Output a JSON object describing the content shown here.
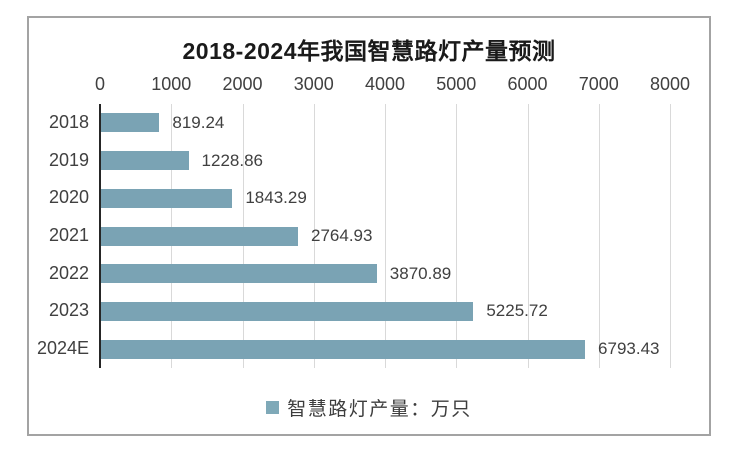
{
  "chart_data": {
    "type": "bar",
    "orientation": "horizontal",
    "title": "2018-2024年我国智慧路灯产量预测",
    "categories": [
      "2018",
      "2019",
      "2020",
      "2021",
      "2022",
      "2023",
      "2024E"
    ],
    "values": [
      819.24,
      1228.86,
      1843.29,
      2764.93,
      3870.89,
      5225.72,
      6793.43
    ],
    "value_labels": [
      "819.24",
      "1228.86",
      "1843.29",
      "2764.93",
      "3870.89",
      "5225.72",
      "6793.43"
    ],
    "xlabel": "",
    "ylabel": "",
    "xlim": [
      0,
      8000
    ],
    "x_ticks": [
      0,
      1000,
      2000,
      3000,
      4000,
      5000,
      6000,
      7000,
      8000
    ],
    "x_tick_labels": [
      "0",
      "1000",
      "2000",
      "3000",
      "4000",
      "5000",
      "6000",
      "7000",
      "8000"
    ],
    "axis_position": "top",
    "grid": true,
    "legend": [
      {
        "label": "智慧路灯产量：万只",
        "color": "#7fa9b8"
      }
    ],
    "legend_position": "bottom",
    "colors": {
      "bar": "#7aa3b4",
      "grid": "#d9d9d9",
      "axis_line": "#262626",
      "tick_text": "#404040",
      "title_text": "#1a1a1a",
      "border": "#a3a3a3",
      "background": "#ffffff"
    }
  }
}
